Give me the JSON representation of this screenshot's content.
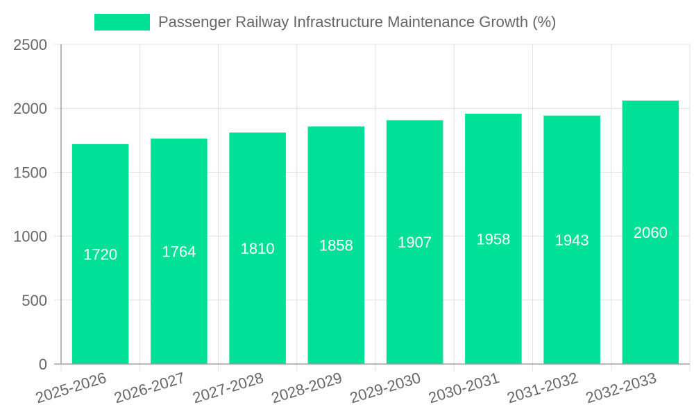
{
  "colors": {
    "bar": "#00e096",
    "text": "#666666",
    "grid": "#e1e1e1",
    "bar_label": "#ffffff"
  },
  "chart_data": {
    "type": "bar",
    "title": "",
    "legend": [
      "Passenger Railway Infrastructure Maintenance Growth (%)"
    ],
    "legend_position": "top",
    "categories": [
      "2025-2026",
      "2026-2027",
      "2027-2028",
      "2028-2029",
      "2029-2030",
      "2030-2031",
      "2031-2032",
      "2032-2033"
    ],
    "series": [
      {
        "name": "Passenger Railway Infrastructure Maintenance Growth (%)",
        "values": [
          1720,
          1764,
          1810,
          1858,
          1907,
          1958,
          1943,
          2060
        ]
      }
    ],
    "yticks": [
      "0",
      "500",
      "1000",
      "1500",
      "2000",
      "2500"
    ],
    "ylim": [
      0,
      2500
    ],
    "grid": true,
    "xlabel": "",
    "ylabel": ""
  }
}
